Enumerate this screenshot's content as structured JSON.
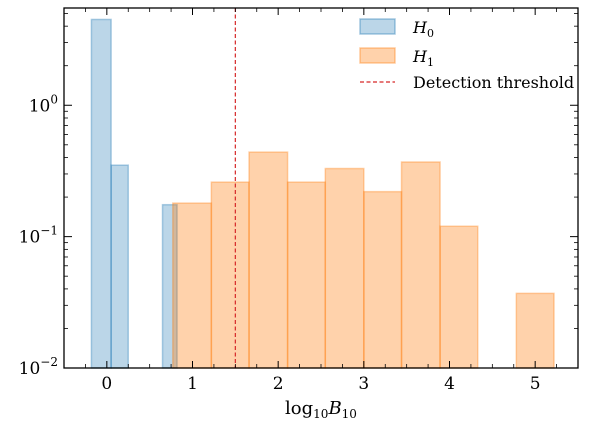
{
  "chart_data": {
    "type": "histogram",
    "x_axis": {
      "label": "log₁₀B₁₀",
      "range": [
        -0.5,
        5.5
      ],
      "ticks": [
        0,
        1,
        2,
        3,
        4,
        5
      ]
    },
    "y_axis": {
      "scale": "log",
      "range": [
        0.01,
        5.5
      ],
      "ticks": [
        0.01,
        0.1,
        1
      ],
      "tick_labels": [
        {
          "base": "10",
          "exp": "−2"
        },
        {
          "base": "10",
          "exp": "−1"
        },
        {
          "base": "10",
          "exp": "0"
        }
      ]
    },
    "series": [
      {
        "name": "H0",
        "label_base": "H",
        "label_sub": "0",
        "color": "#1f77b4",
        "fill_opacity": 0.3,
        "bins": [
          {
            "x0": -0.18,
            "x1": 0.05,
            "value": 4.5
          },
          {
            "x0": 0.05,
            "x1": 0.25,
            "value": 0.35
          },
          {
            "x0": 0.65,
            "x1": 0.82,
            "value": 0.175
          }
        ]
      },
      {
        "name": "H1",
        "label_base": "H",
        "label_sub": "1",
        "color": "#ff7f0e",
        "fill_opacity": 0.35,
        "bins": [
          {
            "x0": 0.77,
            "x1": 1.22,
            "value": 0.18
          },
          {
            "x0": 1.22,
            "x1": 1.66,
            "value": 0.26
          },
          {
            "x0": 1.66,
            "x1": 2.11,
            "value": 0.44
          },
          {
            "x0": 2.11,
            "x1": 2.55,
            "value": 0.26
          },
          {
            "x0": 2.55,
            "x1": 3.0,
            "value": 0.33
          },
          {
            "x0": 3.0,
            "x1": 3.44,
            "value": 0.22
          },
          {
            "x0": 3.44,
            "x1": 3.89,
            "value": 0.37
          },
          {
            "x0": 3.89,
            "x1": 4.33,
            "value": 0.12
          },
          {
            "x0": 4.33,
            "x1": 4.78,
            "value": 0
          },
          {
            "x0": 4.78,
            "x1": 5.22,
            "value": 0.037
          }
        ]
      }
    ],
    "threshold": {
      "name": "Detection threshold",
      "x": 1.5,
      "color": "#d62728"
    },
    "legend": {
      "placement": "top-right"
    }
  }
}
